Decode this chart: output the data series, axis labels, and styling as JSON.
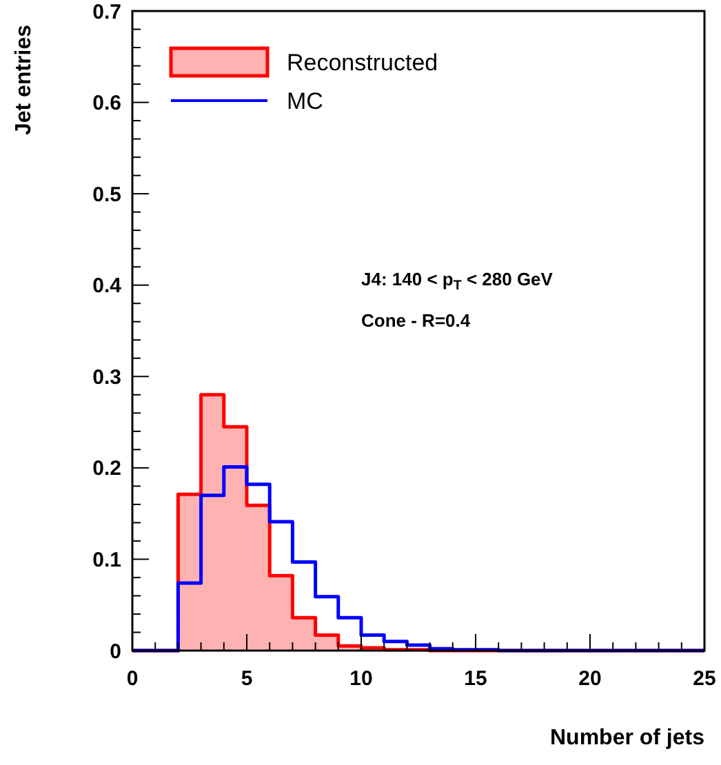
{
  "chart_data": {
    "type": "histogram",
    "xlabel": "Number of jets",
    "ylabel": "Jet entries",
    "bins": [
      0,
      1,
      2,
      3,
      4,
      5,
      6,
      7,
      8,
      9,
      10,
      11,
      12,
      13,
      14,
      15,
      16,
      17,
      18,
      19,
      20,
      21,
      22,
      23,
      24,
      25
    ],
    "series": [
      {
        "name": "Reconstructed",
        "color": "#ff0000",
        "values": [
          0,
          0,
          0.171,
          0.28,
          0.245,
          0.159,
          0.082,
          0.036,
          0.017,
          0.005,
          0.003,
          0.001,
          0.001,
          0,
          0,
          0,
          0,
          0,
          0,
          0,
          0,
          0,
          0,
          0,
          0
        ]
      },
      {
        "name": "MC",
        "color": "#0000ff",
        "values": [
          0,
          0,
          0.074,
          0.17,
          0.201,
          0.182,
          0.141,
          0.097,
          0.059,
          0.036,
          0.017,
          0.01,
          0.006,
          0.002,
          0.001,
          0.001,
          0,
          0,
          0,
          0,
          0,
          0,
          0,
          0,
          0
        ]
      }
    ],
    "xlim": [
      0,
      25
    ],
    "xticks": [
      0,
      5,
      10,
      15,
      20,
      25
    ],
    "ylim": [
      0,
      0.7
    ],
    "yticks": [
      {
        "value": 0,
        "label": "0"
      },
      0.1,
      0.2,
      0.3,
      0.4,
      0.5,
      0.6,
      0.7
    ],
    "legend": "top left",
    "grid": false,
    "annotations": [
      "J4: 140 < p$_{T}$ < 280 GeV",
      "Cone - R=0.4"
    ]
  }
}
